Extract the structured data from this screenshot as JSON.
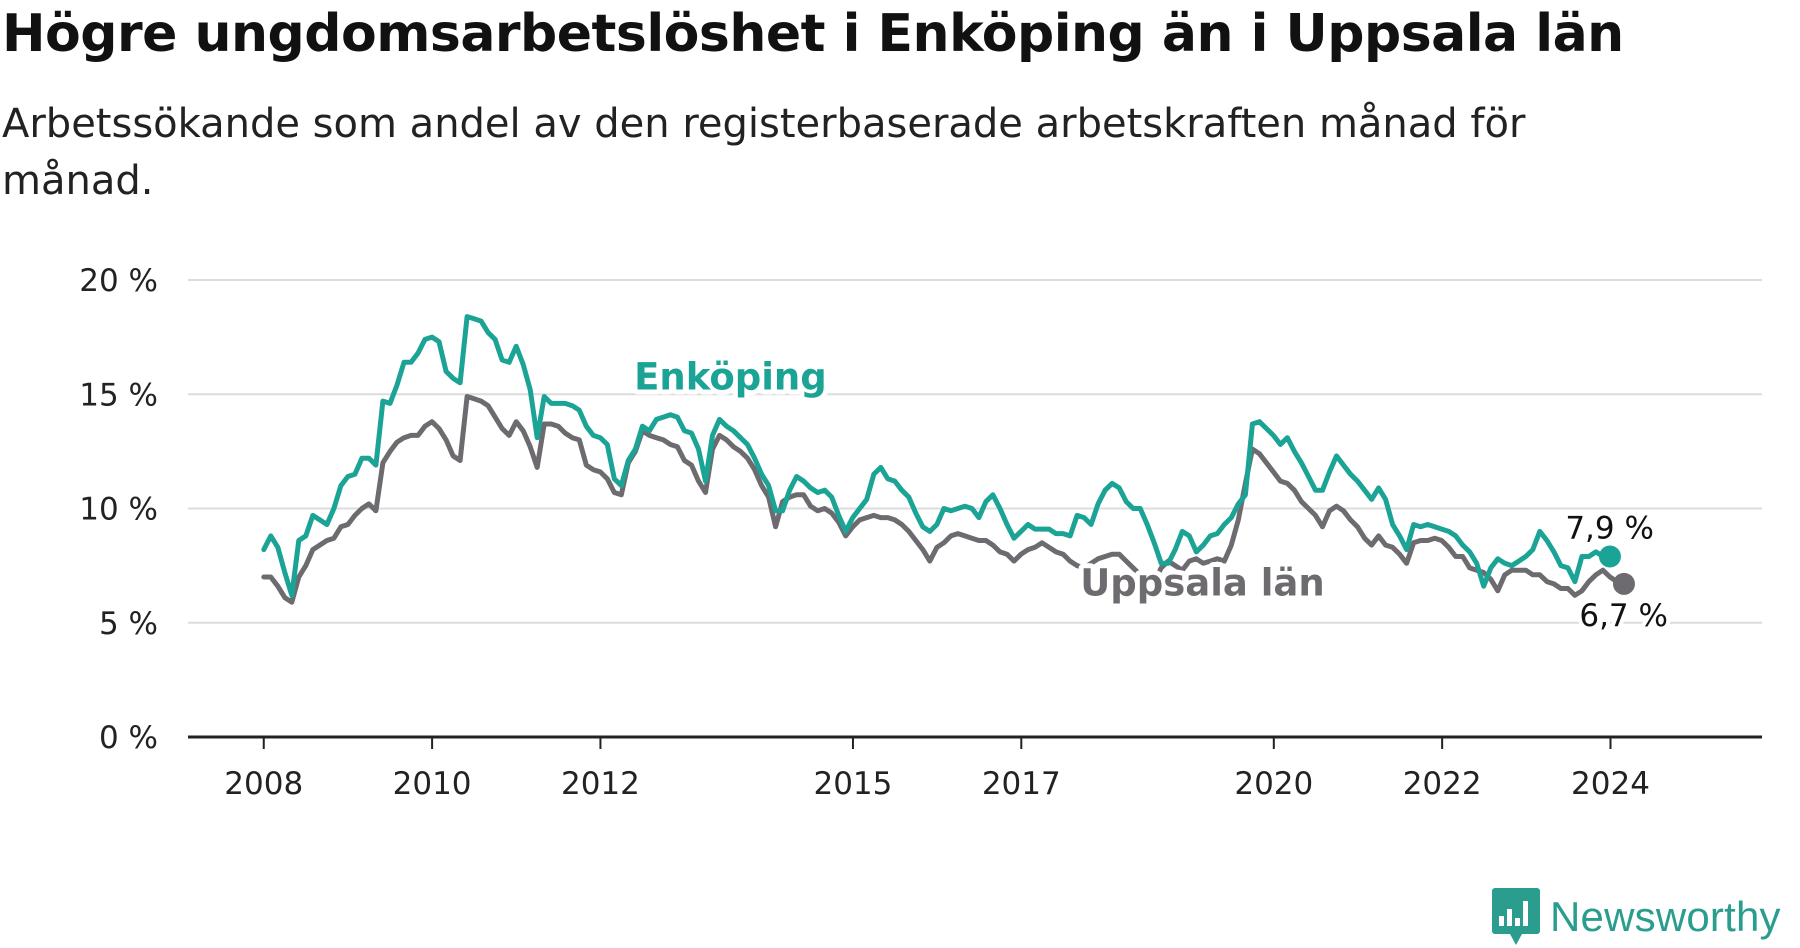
{
  "title": "Högre ungdomsarbetslöshet i Enköping än i Uppsala län",
  "subtitle": "Arbetssökande som andel av den registerbaserade arbetskraften månad för månad.",
  "brand": {
    "name": "Newsworthy",
    "icon": "newsworthy-logo-icon",
    "color": "#2a9d8f"
  },
  "chart_data": {
    "type": "line",
    "x_unit": "year (decimal, monthly)",
    "x_start": 2008.0,
    "x_step": 0.0833,
    "xlim": [
      2007.1,
      2025.8
    ],
    "ylim": [
      0,
      20
    ],
    "y_ticks": [
      0,
      5,
      10,
      15,
      20
    ],
    "y_tick_labels": [
      "0 %",
      "5 %",
      "10 %",
      "15 %",
      "20 %"
    ],
    "x_ticks": [
      2008,
      2010,
      2012,
      2015,
      2017,
      2020,
      2022,
      2024
    ],
    "x_tick_labels": [
      "2008",
      "2010",
      "2012",
      "2015",
      "2017",
      "2020",
      "2022",
      "2024"
    ],
    "grid": true,
    "series": [
      {
        "name": "Enköping",
        "color": "#1ba396",
        "end_label": "7,9 %",
        "values": [
          8.2,
          8.8,
          8.3,
          7.2,
          6.2,
          8.6,
          8.8,
          9.7,
          9.5,
          9.3,
          10.0,
          11.0,
          11.4,
          11.5,
          12.2,
          12.2,
          11.9,
          14.7,
          14.6,
          15.4,
          16.4,
          16.4,
          16.8,
          17.4,
          17.5,
          17.3,
          16.0,
          15.7,
          15.5,
          18.4,
          18.3,
          18.2,
          17.7,
          17.4,
          16.5,
          16.4,
          17.1,
          16.3,
          15.2,
          13.1,
          14.9,
          14.6,
          14.6,
          14.6,
          14.5,
          14.3,
          13.6,
          13.2,
          13.1,
          12.8,
          11.3,
          11.0,
          12.1,
          12.6,
          13.6,
          13.4,
          13.9,
          14.0,
          14.1,
          14.0,
          13.4,
          13.3,
          12.6,
          11.2,
          13.2,
          13.9,
          13.6,
          13.4,
          13.1,
          12.8,
          12.2,
          11.5,
          11.0,
          9.9,
          9.9,
          10.8,
          11.4,
          11.2,
          10.9,
          10.7,
          10.8,
          10.5,
          9.7,
          9.0,
          9.6,
          10.0,
          10.4,
          11.5,
          11.8,
          11.3,
          11.2,
          10.8,
          10.5,
          9.8,
          9.2,
          9.0,
          9.3,
          10.0,
          9.9,
          10.0,
          10.1,
          10.0,
          9.6,
          10.3,
          10.6,
          10.0,
          9.3,
          8.7,
          9.0,
          9.3,
          9.1,
          9.1,
          9.1,
          8.9,
          8.9,
          8.8,
          9.7,
          9.6,
          9.3,
          10.2,
          10.8,
          11.1,
          10.9,
          10.3,
          10.0,
          10.0,
          9.3,
          8.5,
          7.6,
          7.6,
          8.2,
          9.0,
          8.8,
          8.1,
          8.4,
          8.8,
          8.9,
          9.3,
          9.6,
          10.2,
          10.6,
          13.7,
          13.8,
          13.5,
          13.2,
          12.8,
          13.1,
          12.5,
          12.0,
          11.4,
          10.8,
          10.8,
          11.6,
          12.3,
          11.9,
          11.5,
          11.2,
          10.8,
          10.4,
          10.9,
          10.4,
          9.3,
          8.8,
          8.2,
          9.3,
          9.2,
          9.3,
          9.2,
          9.1,
          9.0,
          8.8,
          8.4,
          8.1,
          7.6,
          6.6,
          7.4,
          7.8,
          7.6,
          7.5,
          7.7,
          7.9,
          8.2,
          9.0,
          8.6,
          8.1,
          7.5,
          7.4,
          6.8,
          7.9,
          7.9,
          8.1,
          7.9,
          7.9
        ]
      },
      {
        "name": "Uppsala län",
        "color": "#6e6b70",
        "end_label": "6,7 %",
        "values": [
          7.0,
          7.0,
          6.6,
          6.1,
          5.9,
          7.0,
          7.5,
          8.2,
          8.4,
          8.6,
          8.7,
          9.2,
          9.3,
          9.7,
          10.0,
          10.2,
          9.9,
          12.0,
          12.5,
          12.9,
          13.1,
          13.2,
          13.2,
          13.6,
          13.8,
          13.5,
          13.0,
          12.3,
          12.1,
          14.9,
          14.8,
          14.7,
          14.5,
          14.0,
          13.5,
          13.2,
          13.8,
          13.4,
          12.7,
          11.8,
          13.7,
          13.7,
          13.6,
          13.3,
          13.1,
          13.0,
          11.9,
          11.7,
          11.6,
          11.3,
          10.7,
          10.6,
          12.0,
          12.5,
          13.4,
          13.2,
          13.1,
          13.0,
          12.8,
          12.7,
          12.1,
          11.9,
          11.2,
          10.7,
          12.6,
          13.2,
          13.0,
          12.7,
          12.5,
          12.2,
          11.7,
          11.0,
          10.5,
          9.2,
          10.3,
          10.5,
          10.6,
          10.6,
          10.1,
          9.9,
          10.0,
          9.8,
          9.4,
          8.8,
          9.2,
          9.5,
          9.6,
          9.7,
          9.6,
          9.6,
          9.5,
          9.3,
          9.0,
          8.6,
          8.2,
          7.7,
          8.3,
          8.5,
          8.8,
          8.9,
          8.8,
          8.7,
          8.6,
          8.6,
          8.4,
          8.1,
          8.0,
          7.7,
          8.0,
          8.2,
          8.3,
          8.5,
          8.3,
          8.1,
          8.0,
          7.7,
          7.5,
          7.4,
          7.6,
          7.8,
          7.9,
          8.0,
          8.0,
          7.7,
          7.4,
          7.1,
          6.8,
          6.8,
          7.4,
          7.7,
          7.5,
          7.3,
          7.7,
          7.8,
          7.6,
          7.7,
          7.8,
          7.7,
          8.4,
          9.5,
          11.1,
          12.6,
          12.4,
          12.0,
          11.6,
          11.2,
          11.1,
          10.8,
          10.3,
          10.0,
          9.7,
          9.2,
          9.9,
          10.1,
          9.9,
          9.5,
          9.2,
          8.7,
          8.4,
          8.8,
          8.4,
          8.3,
          8.0,
          7.6,
          8.5,
          8.6,
          8.6,
          8.7,
          8.6,
          8.3,
          7.9,
          7.9,
          7.4,
          7.3,
          7.2,
          6.9,
          6.4,
          7.1,
          7.3,
          7.3,
          7.3,
          7.1,
          7.1,
          6.8,
          6.7,
          6.5,
          6.5,
          6.2,
          6.4,
          6.8,
          7.1,
          7.3,
          7.0,
          6.8,
          6.7
        ]
      }
    ],
    "annotations": [
      {
        "text": "Enköping",
        "series": 0
      },
      {
        "text": "Uppsala län",
        "series": 1
      }
    ]
  }
}
